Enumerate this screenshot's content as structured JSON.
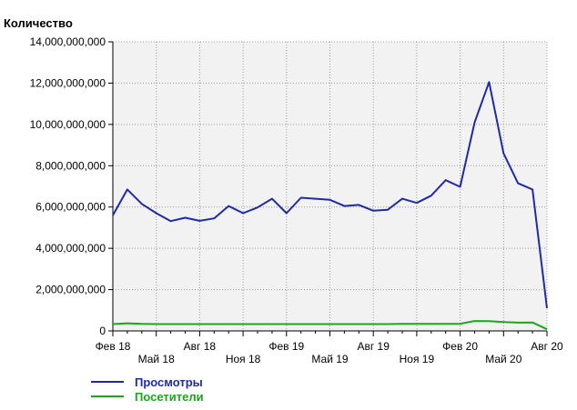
{
  "chart_data": {
    "type": "line",
    "ylabel": "Количество",
    "ylim": [
      0,
      14000000000
    ],
    "yticks": [
      0,
      2000000000,
      4000000000,
      6000000000,
      8000000000,
      10000000000,
      12000000000,
      14000000000
    ],
    "ytick_labels": [
      "0",
      "2,000,000,000",
      "4,000,000,000",
      "6,000,000,000",
      "8,000,000,000",
      "10,000,000,000",
      "12,000,000,000",
      "14,000,000,000"
    ],
    "x": [
      "2018-02",
      "2018-03",
      "2018-04",
      "2018-05",
      "2018-06",
      "2018-07",
      "2018-08",
      "2018-09",
      "2018-10",
      "2018-11",
      "2018-12",
      "2019-01",
      "2019-02",
      "2019-03",
      "2019-04",
      "2019-05",
      "2019-06",
      "2019-07",
      "2019-08",
      "2019-09",
      "2019-10",
      "2019-11",
      "2019-12",
      "2020-01",
      "2020-02",
      "2020-03",
      "2020-04",
      "2020-05",
      "2020-06",
      "2020-07",
      "2020-08"
    ],
    "xtick_labels": [
      "Фев 18",
      "Май 18",
      "Авг 18",
      "Ноя 18",
      "Фев 19",
      "Май 19",
      "Авг 19",
      "Ноя 19",
      "Фев 20",
      "Май 20",
      "Авг 20"
    ],
    "grid": true,
    "legend": "bottom-left",
    "series": [
      {
        "name": "Просмотры",
        "color": "#1f2aa8",
        "values": [
          5600000000,
          6850000000,
          6150000000,
          5700000000,
          5320000000,
          5480000000,
          5330000000,
          5450000000,
          6050000000,
          5700000000,
          5980000000,
          6400000000,
          5700000000,
          6450000000,
          6400000000,
          6350000000,
          6050000000,
          6100000000,
          5820000000,
          5870000000,
          6400000000,
          6200000000,
          6550000000,
          7300000000,
          6980000000,
          10100000000,
          12050000000,
          8600000000,
          7150000000,
          6850000000,
          1100000000
        ]
      },
      {
        "name": "Посетители",
        "color": "#1aa81a",
        "values": [
          330000000,
          370000000,
          340000000,
          330000000,
          330000000,
          330000000,
          330000000,
          330000000,
          330000000,
          330000000,
          330000000,
          330000000,
          330000000,
          330000000,
          330000000,
          330000000,
          330000000,
          330000000,
          330000000,
          330000000,
          340000000,
          340000000,
          340000000,
          340000000,
          350000000,
          480000000,
          470000000,
          430000000,
          400000000,
          410000000,
          80000000
        ]
      }
    ]
  }
}
